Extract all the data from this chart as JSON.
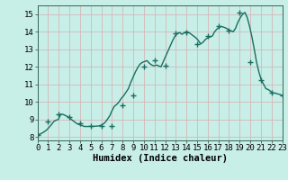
{
  "x_markers": [
    0,
    1,
    2,
    3,
    4,
    5,
    6,
    7,
    8,
    9,
    10,
    11,
    12,
    13,
    14,
    15,
    16,
    17,
    18,
    19,
    20,
    21,
    22,
    23
  ],
  "y_markers": [
    8.1,
    8.9,
    9.3,
    9.15,
    8.75,
    8.6,
    8.6,
    8.62,
    9.8,
    10.35,
    12.0,
    12.35,
    12.05,
    13.9,
    13.95,
    13.3,
    13.75,
    14.3,
    14.05,
    15.1,
    12.25,
    11.25,
    10.5,
    10.35
  ],
  "y_dense": [
    8.1,
    8.15,
    8.22,
    8.3,
    8.4,
    8.55,
    8.7,
    8.88,
    8.95,
    9.0,
    9.3,
    9.28,
    9.22,
    9.15,
    9.05,
    8.95,
    8.85,
    8.75,
    8.7,
    8.65,
    8.6,
    8.59,
    8.6,
    8.6,
    8.6,
    8.61,
    8.62,
    8.65,
    8.72,
    8.82,
    9.0,
    9.2,
    9.5,
    9.75,
    9.85,
    10.0,
    10.2,
    10.35,
    10.55,
    10.75,
    11.1,
    11.4,
    11.7,
    11.95,
    12.15,
    12.25,
    12.3,
    12.35,
    12.2,
    12.1,
    12.05,
    12.1,
    12.05,
    12.0,
    12.3,
    12.6,
    12.9,
    13.2,
    13.5,
    13.75,
    13.9,
    13.95,
    13.85,
    13.95,
    14.0,
    13.95,
    13.85,
    13.75,
    13.65,
    13.5,
    13.3,
    13.4,
    13.55,
    13.65,
    13.7,
    13.75,
    14.0,
    14.15,
    14.25,
    14.3,
    14.25,
    14.2,
    14.1,
    14.05,
    14.0,
    14.2,
    14.55,
    14.8,
    15.0,
    15.1,
    14.8,
    14.3,
    13.7,
    13.0,
    12.25,
    11.7,
    11.25,
    11.0,
    10.75,
    10.7,
    10.6,
    10.5,
    10.5,
    10.45,
    10.42,
    10.35
  ],
  "line_color": "#1a6e60",
  "marker_color": "#1a6e60",
  "marker": "+",
  "marker_size": 4,
  "linewidth": 1.0,
  "bg_color": "#c8eee8",
  "grid_color": "#d4b8b8",
  "xlabel": "Humidex (Indice chaleur)",
  "ylim": [
    7.8,
    15.5
  ],
  "xlim": [
    0,
    23
  ],
  "yticks": [
    8,
    9,
    10,
    11,
    12,
    13,
    14,
    15
  ],
  "xticks": [
    0,
    1,
    2,
    3,
    4,
    5,
    6,
    7,
    8,
    9,
    10,
    11,
    12,
    13,
    14,
    15,
    16,
    17,
    18,
    19,
    20,
    21,
    22,
    23
  ],
  "xlabel_fontsize": 7.5,
  "tick_fontsize": 6.5
}
